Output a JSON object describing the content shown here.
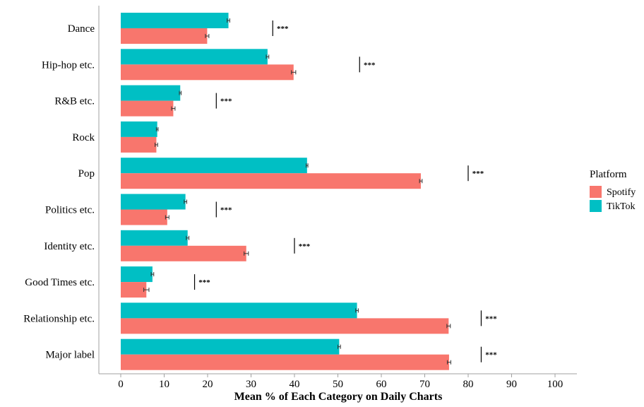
{
  "chart_data": {
    "type": "bar",
    "orientation": "horizontal",
    "categories": [
      "Dance",
      "Hip-hop etc.",
      "R&B etc.",
      "Rock",
      "Pop",
      "Politics etc.",
      "Identity etc.",
      "Good Times etc.",
      "Relationship etc.",
      "Major label"
    ],
    "series": [
      {
        "name": "TikTok",
        "color": "#00BFC4",
        "values": [
          24.8,
          33.8,
          13.7,
          8.4,
          42.9,
          14.9,
          15.4,
          7.3,
          54.4,
          50.3
        ],
        "error": [
          0.3,
          0.3,
          0.2,
          0.2,
          0.2,
          0.3,
          0.3,
          0.3,
          0.3,
          0.3
        ]
      },
      {
        "name": "Spotify",
        "color": "#F8766D",
        "values": [
          19.9,
          39.8,
          12.1,
          8.2,
          69.1,
          10.7,
          28.9,
          5.9,
          75.5,
          75.6
        ],
        "error": [
          0.4,
          0.5,
          0.4,
          0.3,
          0.3,
          0.4,
          0.5,
          0.6,
          0.4,
          0.4
        ]
      }
    ],
    "significance": [
      {
        "x": 35,
        "label": "***"
      },
      {
        "x": 55,
        "label": "***"
      },
      {
        "x": 22,
        "label": "***"
      },
      null,
      {
        "x": 80,
        "label": "***"
      },
      {
        "x": 22,
        "label": "***"
      },
      {
        "x": 40,
        "label": "***"
      },
      {
        "x": 17,
        "label": "***"
      },
      {
        "x": 83,
        "label": "***"
      },
      {
        "x": 83,
        "label": "***"
      }
    ],
    "xlabel": "Mean % of Each Category on Daily Charts",
    "ylabel": "",
    "xlim": [
      0,
      100
    ],
    "xticks": [
      0,
      10,
      20,
      30,
      40,
      50,
      60,
      70,
      80,
      90,
      100
    ],
    "grid": false,
    "legend": {
      "title": "Platform",
      "placement": "right",
      "entries": [
        {
          "name": "Spotify",
          "color": "#F8766D"
        },
        {
          "name": "TikTok",
          "color": "#00BFC4"
        }
      ]
    }
  }
}
